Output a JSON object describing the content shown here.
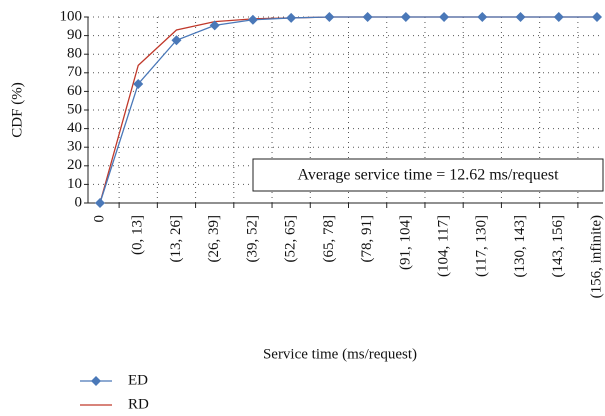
{
  "chart_data": {
    "type": "line",
    "y_label": "CDF (%)",
    "x_label": "Service time (ms/request)",
    "annotation": "Average service time = 12.62 ms/request",
    "categories": [
      "0",
      "(0, 13]",
      "(13, 26]",
      "(26, 39]",
      "(39, 52]",
      "(52, 65]",
      "(65, 78]",
      "(78, 91]",
      "(91, 104]",
      "(104, 117]",
      "(117, 130]",
      "(130, 143]",
      "(143, 156]",
      "(156, infinite)"
    ],
    "series": [
      {
        "name": "ED",
        "color": "#4a78b8",
        "marker": "diamond",
        "values": [
          0,
          64,
          87.5,
          95.5,
          98.5,
          99.5,
          100,
          100,
          100,
          100,
          100,
          100,
          100,
          100
        ]
      },
      {
        "name": "RD",
        "color": "#c0392b",
        "values": [
          0,
          74,
          93,
          97.5,
          99,
          99.5,
          100,
          100,
          100,
          100,
          100,
          100,
          100,
          100
        ]
      }
    ],
    "ylim": [
      0,
      100
    ],
    "yticks": [
      0,
      10,
      20,
      30,
      40,
      50,
      60,
      70,
      80,
      90,
      100
    ],
    "grid": true
  }
}
